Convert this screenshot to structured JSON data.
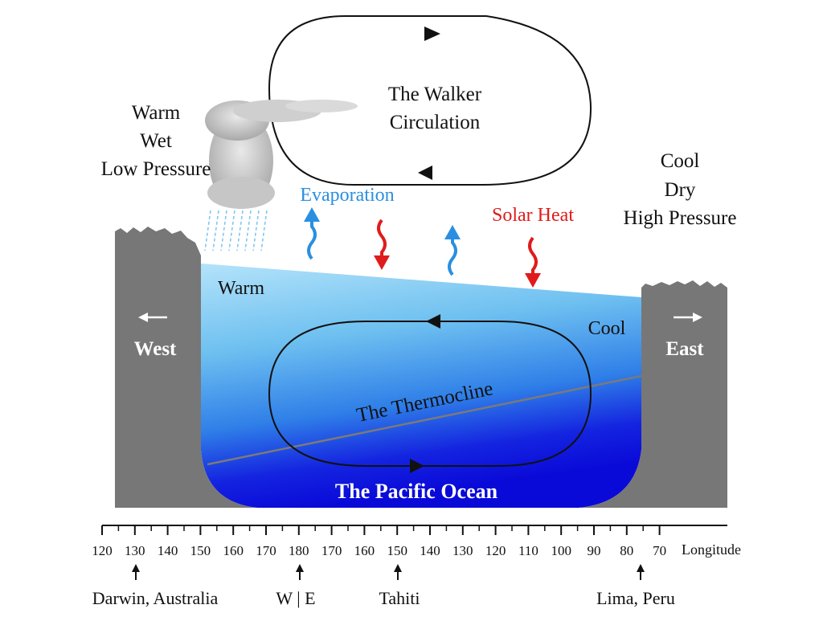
{
  "walker_label": [
    "The Walker",
    "Circulation"
  ],
  "west_weather": [
    "Warm",
    "Wet",
    "Low Pressure"
  ],
  "east_weather": [
    "Cool",
    "Dry",
    "High Pressure"
  ],
  "evaporation": "Evaporation",
  "solar_heat": "Solar Heat",
  "warm": "Warm",
  "cool": "Cool",
  "west": "West",
  "east": "East",
  "thermocline": "The Thermocline",
  "ocean": "The Pacific Ocean",
  "axis_ticks": [
    "120",
    "130",
    "140",
    "150",
    "160",
    "170",
    "180",
    "170",
    "160",
    "150",
    "140",
    "130",
    "120",
    "110",
    "100",
    "90",
    "80",
    "70"
  ],
  "axis_title": "Longitude",
  "locations": [
    "Darwin, Australia",
    "W | E",
    "Tahiti",
    "Lima, Peru"
  ],
  "colors": {
    "land": "#777777",
    "evaporation": "#2a8fe0",
    "solar_heat": "#e01b1b",
    "ocean_surface": "#a9dcf7",
    "ocean_deep": "#1010e0"
  }
}
